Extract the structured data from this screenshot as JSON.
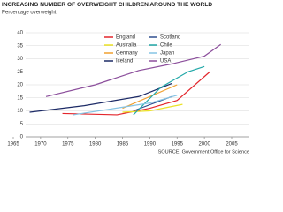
{
  "chart_data": {
    "type": "line",
    "title": "INCREASING NUMBER OF OVERWEIGHT CHILDREN AROUND THE WORLD",
    "subtitle": "Percentage overweight",
    "source": "SOURCE: Government Office for Science",
    "xlim": [
      1965,
      2005
    ],
    "xticks": [
      1965,
      1970,
      1975,
      1980,
      1985,
      1990,
      1995,
      2000,
      2005
    ],
    "ylim": [
      0,
      40
    ],
    "yticks": [
      0,
      5,
      10,
      15,
      20,
      25,
      30,
      35,
      40
    ],
    "grid": true,
    "series": [
      {
        "name": "England",
        "color": "#e3262c",
        "x": [
          1974,
          1984,
          1990,
          1995,
          2001
        ],
        "values": [
          9,
          8.5,
          11,
          14,
          25
        ]
      },
      {
        "name": "Australia",
        "color": "#ece227",
        "x": [
          1985,
          1990,
          1996
        ],
        "values": [
          9.5,
          10,
          12.5
        ]
      },
      {
        "name": "Germany",
        "color": "#f0a030",
        "x": [
          1985,
          1995
        ],
        "values": [
          11,
          20
        ]
      },
      {
        "name": "Iceland",
        "color": "#1c2a66",
        "x": [
          1968,
          1978,
          1988,
          1994
        ],
        "values": [
          9.5,
          12,
          15.5,
          20.5
        ]
      },
      {
        "name": "Scotland",
        "color": "#2f4f8f",
        "x": [
          1987,
          1994
        ],
        "values": [
          10,
          15.5
        ]
      },
      {
        "name": "Chile",
        "color": "#22a8a8",
        "x": [
          1987,
          1992,
          1997,
          2000
        ],
        "values": [
          8.5,
          19,
          25,
          27
        ]
      },
      {
        "name": "Japan",
        "color": "#86c4e4",
        "x": [
          1976,
          1990,
          1995
        ],
        "values": [
          8.5,
          13,
          16
        ]
      },
      {
        "name": "USA",
        "color": "#8c4f9c",
        "x": [
          1971,
          1980,
          1988,
          1994,
          2000,
          2003
        ],
        "values": [
          15.5,
          20,
          25.5,
          28,
          31,
          35.5
        ]
      }
    ]
  }
}
